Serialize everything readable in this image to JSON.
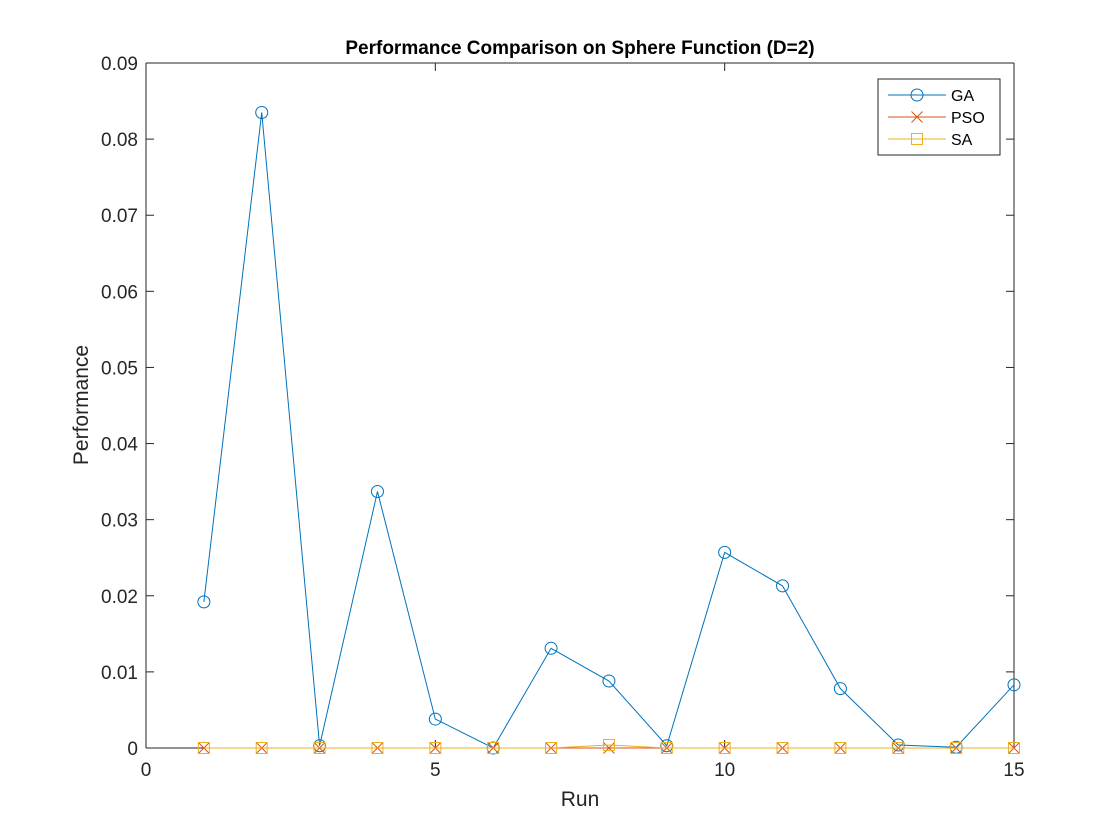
{
  "chart_data": {
    "type": "line",
    "title": "Performance Comparison on Sphere Function (D=2)",
    "xlabel": "Run",
    "ylabel": "Performance",
    "xlim": [
      0,
      15
    ],
    "ylim": [
      0,
      0.09
    ],
    "xticks": [
      0,
      5,
      10,
      15
    ],
    "yticks": [
      0,
      0.01,
      0.02,
      0.03,
      0.04,
      0.05,
      0.06,
      0.07,
      0.08,
      0.09
    ],
    "xtick_labels": [
      "0",
      "5",
      "10",
      "15"
    ],
    "ytick_labels": [
      "0",
      "0.01",
      "0.02",
      "0.03",
      "0.04",
      "0.05",
      "0.06",
      "0.07",
      "0.08",
      "0.09"
    ],
    "grid": false,
    "legend_position": "top-right",
    "x": [
      1,
      2,
      3,
      4,
      5,
      6,
      7,
      8,
      9,
      10,
      11,
      12,
      13,
      14,
      15
    ],
    "series": [
      {
        "name": "GA",
        "color": "#0072BD",
        "marker": "circle",
        "values": [
          0.0192,
          0.0835,
          0.0003,
          0.0337,
          0.0038,
          0.0,
          0.0131,
          0.0088,
          0.0003,
          0.0257,
          0.0213,
          0.0078,
          0.0004,
          0.0001,
          0.0083
        ]
      },
      {
        "name": "PSO",
        "color": "#D95319",
        "marker": "x",
        "values": [
          0,
          0,
          0,
          0,
          0,
          0,
          0,
          0,
          0,
          0,
          0,
          0,
          0,
          0,
          0
        ]
      },
      {
        "name": "SA",
        "color": "#EDB120",
        "marker": "square",
        "values": [
          0,
          0,
          0,
          0,
          0,
          0,
          0,
          0.0004,
          0,
          0,
          0,
          0,
          0,
          0,
          0
        ]
      }
    ]
  }
}
